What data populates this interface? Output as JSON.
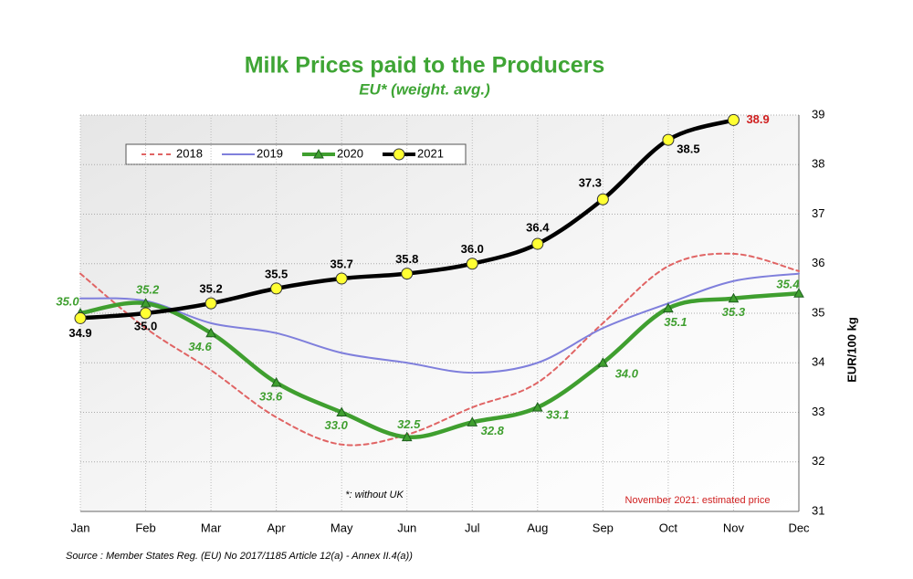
{
  "chart_data": {
    "type": "line",
    "title": "Milk Prices paid to the Producers",
    "subtitle": "EU* (weight. avg.)",
    "y_label": "EUR/100 kg",
    "annotations": [
      "*: without UK",
      "November 2021: estimated price"
    ],
    "source": "Source : Member States Reg. (EU) No 2017/1185 Article 12(a) - Annex II.4(a))",
    "categories": [
      "Jan",
      "Feb",
      "Mar",
      "Apr",
      "May",
      "Jun",
      "Jul",
      "Aug",
      "Sep",
      "Oct",
      "Nov",
      "Dec"
    ],
    "ylim": [
      31,
      39
    ],
    "yticks": [
      31,
      32,
      33,
      34,
      35,
      36,
      37,
      38,
      39
    ],
    "grid": true,
    "legend": "top-left",
    "series": [
      {
        "name": "2018",
        "color": "#e06464",
        "dash": true,
        "marker": "none",
        "values": [
          35.8,
          34.7,
          33.85,
          32.9,
          32.35,
          32.55,
          33.1,
          33.6,
          34.8,
          35.95,
          36.2,
          35.85
        ]
      },
      {
        "name": "2019",
        "color": "#7f7fdc",
        "dash": false,
        "marker": "none",
        "values": [
          35.3,
          35.25,
          34.8,
          34.6,
          34.2,
          34.0,
          33.8,
          34.0,
          34.7,
          35.2,
          35.65,
          35.8
        ]
      },
      {
        "name": "2020",
        "color": "#3f9f2f",
        "dash": false,
        "marker": "triangle",
        "values": [
          35.0,
          35.2,
          34.6,
          33.6,
          33.0,
          32.5,
          32.8,
          33.1,
          34.0,
          35.1,
          35.3,
          35.4
        ],
        "value_labels": [
          "35.0",
          "35.2",
          "34.6",
          "33.6",
          "33.0",
          "32.5",
          "32.8",
          "33.1",
          "34.0",
          "35.1",
          "35.3",
          "35.4"
        ]
      },
      {
        "name": "2021",
        "color": "#000000",
        "dash": false,
        "marker": "circle",
        "values": [
          34.9,
          35.0,
          35.2,
          35.5,
          35.7,
          35.8,
          36.0,
          36.4,
          37.3,
          38.5,
          38.9,
          null
        ],
        "value_labels": [
          "34.9",
          "35.0",
          "35.2",
          "35.5",
          "35.7",
          "35.8",
          "36.0",
          "36.4",
          "37.3",
          "38.5",
          "38.9",
          null
        ]
      }
    ]
  }
}
